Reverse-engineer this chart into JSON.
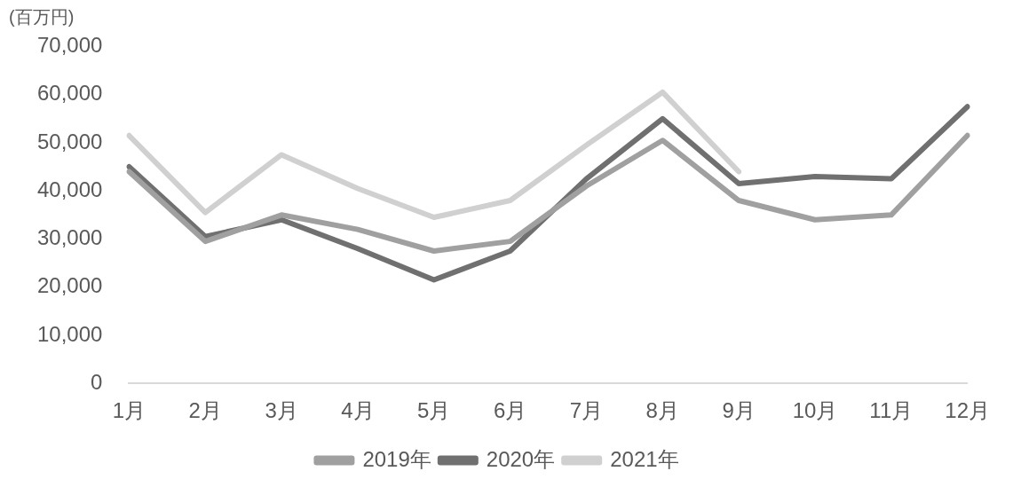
{
  "chart_data": {
    "type": "line",
    "ylabel": "(百万円)",
    "categories": [
      "1月",
      "2月",
      "3月",
      "4月",
      "5月",
      "6月",
      "7月",
      "8月",
      "9月",
      "10月",
      "11月",
      "12月"
    ],
    "series": [
      {
        "name": "2019年",
        "color": "#a0a0a0",
        "values": [
          44000,
          29500,
          35000,
          32000,
          27500,
          29500,
          41000,
          50500,
          38000,
          34000,
          35000,
          51500
        ]
      },
      {
        "name": "2020年",
        "color": "#707070",
        "values": [
          45000,
          30500,
          34000,
          28000,
          21500,
          27500,
          42500,
          55000,
          41500,
          43000,
          42500,
          57500
        ]
      },
      {
        "name": "2021年",
        "color": "#d0d0d0",
        "values": [
          51500,
          35500,
          47500,
          40500,
          34500,
          38000,
          49500,
          60500,
          44000,
          null,
          null,
          null
        ]
      }
    ],
    "ylim": [
      0,
      70000
    ],
    "yticks": [
      {
        "value": 0,
        "label": "0"
      },
      {
        "value": 10000,
        "label": "10,000"
      },
      {
        "value": 20000,
        "label": "20,000"
      },
      {
        "value": 30000,
        "label": "30,000"
      },
      {
        "value": 40000,
        "label": "40,000"
      },
      {
        "value": 50000,
        "label": "50,000"
      },
      {
        "value": 60000,
        "label": "60,000"
      },
      {
        "value": 70000,
        "label": "70,000"
      }
    ],
    "grid": false,
    "legend": "bottom",
    "marker": "none",
    "line_style": "solid"
  }
}
